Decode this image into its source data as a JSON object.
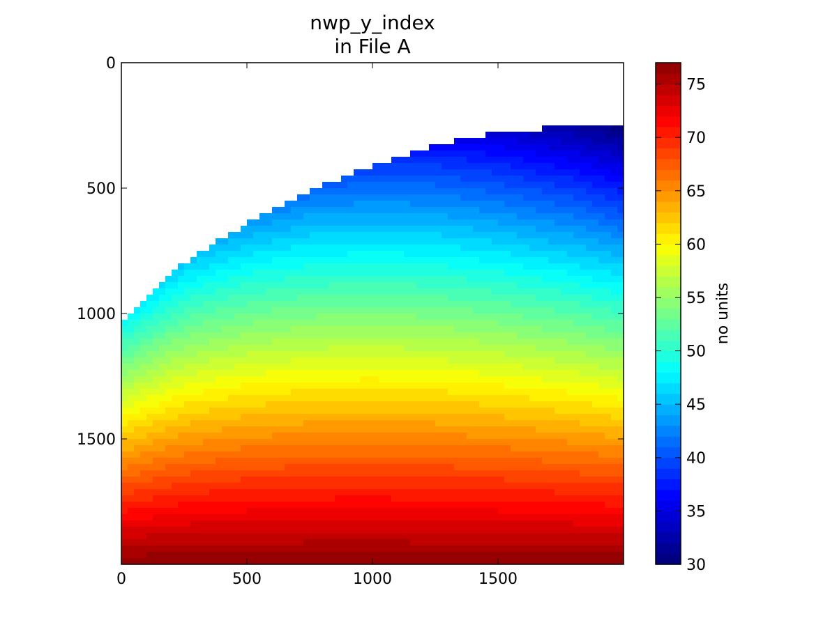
{
  "chart_data": {
    "type": "heatmap",
    "title_lines": [
      "nwp_y_index",
      "in File A"
    ],
    "xlabel": "",
    "ylabel": "",
    "xlim": [
      0,
      2000
    ],
    "ylim": [
      2000,
      0
    ],
    "x_ticks": [
      0,
      500,
      1000,
      1500
    ],
    "x_tick_labels": [
      "0",
      "500",
      "1000",
      "1500"
    ],
    "y_ticks": [
      0,
      500,
      1000,
      1500
    ],
    "y_tick_labels": [
      "0",
      "500",
      "1000",
      "1500"
    ],
    "colormap": "jet",
    "colorbar": {
      "label": "no units",
      "min": 30,
      "max": 77,
      "ticks": [
        30,
        35,
        40,
        45,
        50,
        55,
        60,
        65,
        70,
        75
      ],
      "tick_labels": [
        "30",
        "35",
        "40",
        "45",
        "50",
        "55",
        "60",
        "65",
        "70",
        "75"
      ]
    },
    "field": {
      "description_values": "value increases top-to-bottom; masked (no data) above a curved boundary",
      "boundary": [
        {
          "x": 0,
          "y": 1030
        },
        {
          "x": 250,
          "y": 800
        },
        {
          "x": 500,
          "y": 640
        },
        {
          "x": 750,
          "y": 510
        },
        {
          "x": 1000,
          "y": 410
        },
        {
          "x": 1250,
          "y": 330
        },
        {
          "x": 1500,
          "y": 280
        },
        {
          "x": 1800,
          "y": 248
        },
        {
          "x": 2000,
          "y": 250
        }
      ],
      "value_at_boundary_left": 48,
      "value_at_boundary_right": 30,
      "value_at_bottom": 77,
      "contour_levels": 47
    },
    "grid": false
  },
  "colors": {
    "axes": "#000000",
    "background": "#ffffff"
  }
}
